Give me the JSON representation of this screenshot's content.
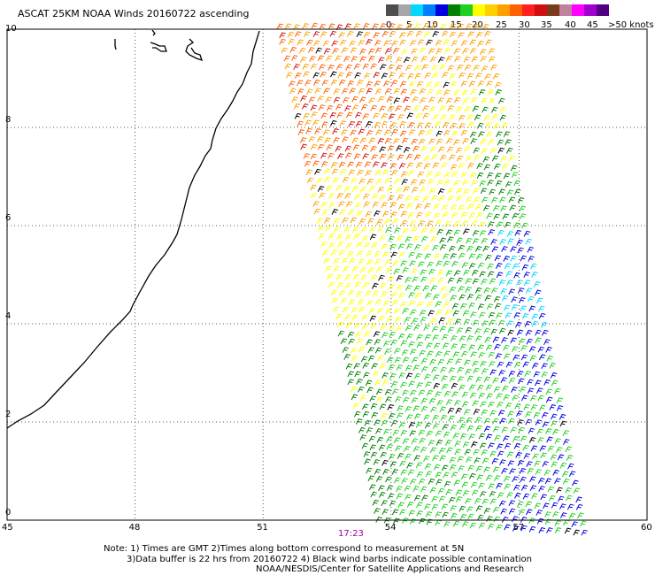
{
  "title": "ASCAT 25KM NOAA Winds 20160722 ascending",
  "colorbar": {
    "labels": [
      "0",
      "5",
      "10",
      "15",
      "20",
      "25",
      "30",
      "35",
      "40",
      "45",
      ">50 knots"
    ],
    "colors": [
      "#4d4d4d",
      "#a6a6a6",
      "#00d8ff",
      "#0080ff",
      "#0000e0",
      "#008000",
      "#20d020",
      "#ffff00",
      "#ffd000",
      "#ffa000",
      "#ff6000",
      "#ff2020",
      "#d01010",
      "#7a3b1a",
      "#c080a0",
      "#ff00ff",
      "#a000d0",
      "#500080"
    ]
  },
  "axes": {
    "lon_ticks": [
      "45",
      "48",
      "51",
      "54",
      "57",
      "60"
    ],
    "lat_ticks": [
      "10",
      "8",
      "6",
      "4",
      "2",
      "0"
    ]
  },
  "swath_time": "17:23",
  "notes": {
    "line1": "Note: 1) Times are GMT 2)Times along bottom correspond to measurement at 5N",
    "line2": "3)Data buffer is 22 hrs from 20160722 4) Black wind barbs indicate possible contamination",
    "line3": "NOAA/NESDIS/Center for Satellite Applications and Research"
  },
  "map_data": {
    "lon_range": [
      45,
      60
    ],
    "lat_range": [
      0,
      10
    ],
    "speed_colors": {
      "5": "#00d8ff",
      "10": "#0000e0",
      "15": "#008000",
      "20": "#20d020",
      "25": "#ffff00",
      "30": "#ffa000",
      "35": "#ff6000",
      "40": "#d01010",
      "contaminated": "#000000"
    }
  }
}
